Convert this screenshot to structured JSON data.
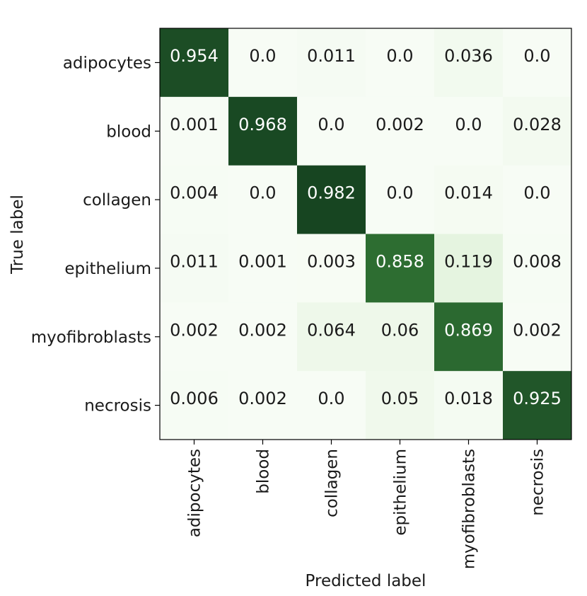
{
  "chart_data": {
    "type": "heatmap",
    "title": "",
    "xlabel": "Predicted label",
    "ylabel": "True label",
    "x_categories": [
      "adipocytes",
      "blood",
      "collagen",
      "epithelium",
      "myofibroblasts",
      "necrosis"
    ],
    "y_categories": [
      "adipocytes",
      "blood",
      "collagen",
      "epithelium",
      "myofibroblasts",
      "necrosis"
    ],
    "values": [
      [
        "0.954",
        "0.0",
        "0.011",
        "0.0",
        "0.036",
        "0.0"
      ],
      [
        "0.001",
        "0.968",
        "0.0",
        "0.002",
        "0.0",
        "0.028"
      ],
      [
        "0.004",
        "0.0",
        "0.982",
        "0.0",
        "0.014",
        "0.0"
      ],
      [
        "0.011",
        "0.001",
        "0.003",
        "0.858",
        "0.119",
        "0.008"
      ],
      [
        "0.002",
        "0.002",
        "0.064",
        "0.06",
        "0.869",
        "0.002"
      ],
      [
        "0.006",
        "0.002",
        "0.0",
        "0.05",
        "0.018",
        "0.925"
      ]
    ],
    "colormap": "Greens",
    "value_range": [
      0,
      1
    ],
    "colorbar": false,
    "grid": false,
    "colors": {
      "low": "#f7fcf5",
      "high": "#14401e",
      "text_dark": "#1a1a1a",
      "text_light": "#ffffff"
    }
  }
}
